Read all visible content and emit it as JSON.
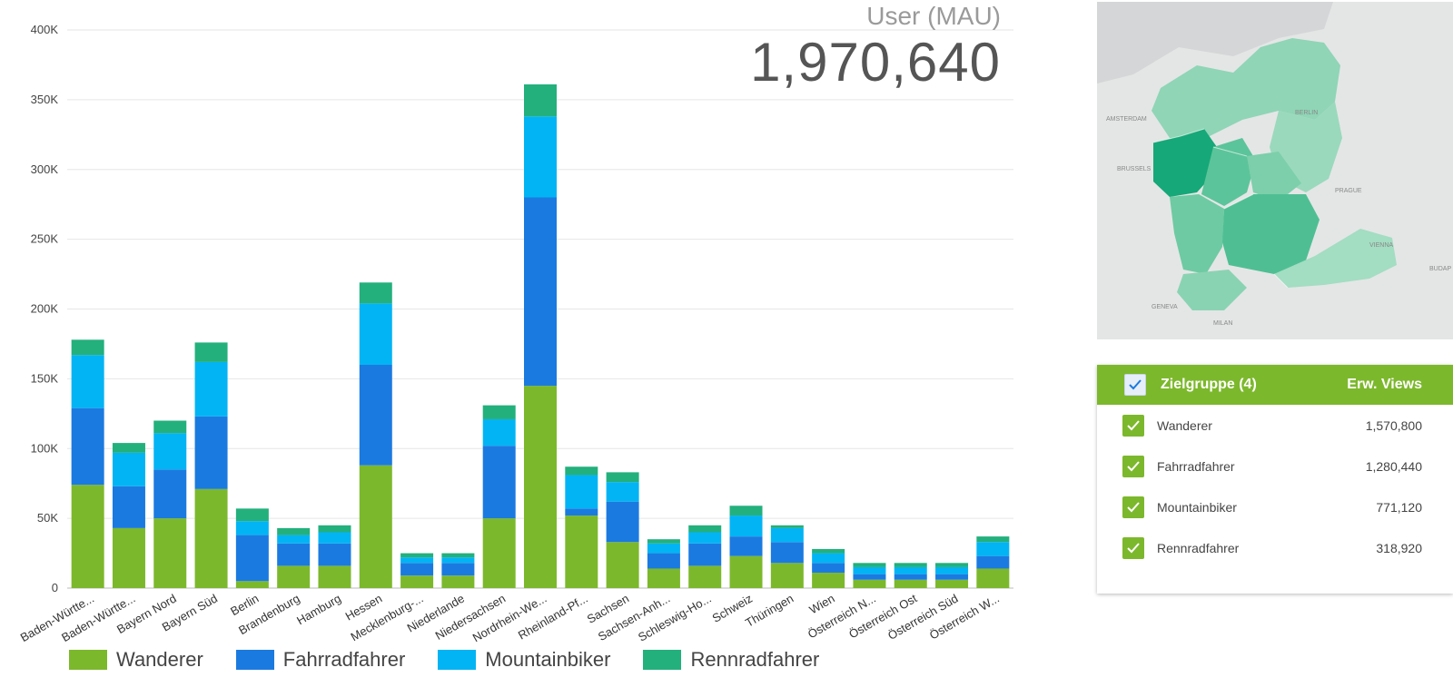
{
  "kpi": {
    "title": "User (MAU)",
    "value": "1,970,640"
  },
  "colors": {
    "Wanderer": "#7cb82c",
    "Fahrradfahrer": "#1b7ae0",
    "Mountainbiker": "#03b4f4",
    "Rennradfahrer": "#23b07d",
    "accent": "#7cb82c"
  },
  "chart_data": {
    "type": "bar",
    "stacked": true,
    "ylim": [
      0,
      400000
    ],
    "yticks": [
      0,
      50000,
      100000,
      150000,
      200000,
      250000,
      300000,
      350000,
      400000
    ],
    "ytick_labels": [
      "0",
      "50K",
      "100K",
      "150K",
      "200K",
      "250K",
      "300K",
      "350K",
      "400K"
    ],
    "grid": true,
    "legend": "bottom-left",
    "categories": [
      "Baden-Württe...",
      "Baden-Württe...",
      "Bayern Nord",
      "Bayern Süd",
      "Berlin",
      "Brandenburg",
      "Hamburg",
      "Hessen",
      "Mecklenburg-...",
      "Niederlande",
      "Niedersachsen",
      "Nordrhein-We...",
      "Rheinland-Pf...",
      "Sachsen",
      "Sachsen-Anh...",
      "Schleswig-Ho...",
      "Schweiz",
      "Thüringen",
      "Wien",
      "Österreich N...",
      "Österreich Ost",
      "Österreich Süd",
      "Österreich W..."
    ],
    "series": [
      {
        "name": "Wanderer",
        "values": [
          74000,
          43000,
          50000,
          71000,
          5000,
          16000,
          16000,
          88000,
          9000,
          9000,
          50000,
          145000,
          52000,
          33000,
          14000,
          16000,
          23000,
          18000,
          11000,
          6000,
          6000,
          6000,
          14000
        ]
      },
      {
        "name": "Fahrradfahrer",
        "values": [
          55000,
          30000,
          35000,
          52000,
          33000,
          16000,
          16000,
          72000,
          9000,
          9000,
          52000,
          135000,
          5000,
          29000,
          11000,
          16000,
          14000,
          15000,
          7000,
          4000,
          4000,
          4000,
          9000
        ]
      },
      {
        "name": "Mountainbiker",
        "values": [
          38000,
          24000,
          26000,
          39000,
          10000,
          6000,
          8000,
          44000,
          4000,
          4000,
          19000,
          58000,
          24000,
          14000,
          7000,
          8000,
          15000,
          10000,
          7000,
          5000,
          5000,
          5000,
          10000
        ]
      },
      {
        "name": "Rennradfahrer",
        "values": [
          11000,
          7000,
          9000,
          14000,
          9000,
          5000,
          5000,
          15000,
          3000,
          3000,
          10000,
          23000,
          6000,
          7000,
          3000,
          5000,
          7000,
          2000,
          3000,
          3000,
          3000,
          3000,
          4000
        ]
      }
    ]
  },
  "table": {
    "header_label": "Zielgruppe (4)",
    "header_value": "Erw. Views",
    "rows": [
      {
        "label": "Wanderer",
        "value": "1,570,800"
      },
      {
        "label": "Fahrradfahrer",
        "value": "1,280,440"
      },
      {
        "label": "Mountainbiker",
        "value": "771,120"
      },
      {
        "label": "Rennradfahrer",
        "value": "318,920"
      }
    ]
  },
  "map": {
    "labels": [
      "BRUSSELS",
      "PRAGUE",
      "VIENNA",
      "BUDAP",
      "GENEVA",
      "MILAN",
      "AMSTERDAM",
      "BERLIN"
    ]
  }
}
